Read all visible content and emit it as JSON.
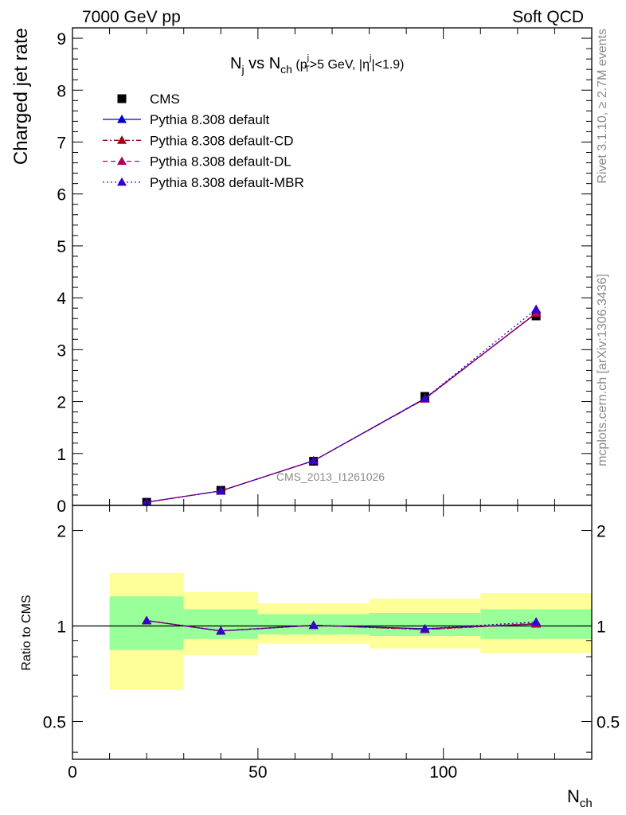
{
  "header": {
    "left": "7000 GeV pp",
    "right": "Soft QCD"
  },
  "side": {
    "rivet": "Rivet 3.1.10, ≥ 2.7M events",
    "mcplots": "mcplots.cern.ch [arXiv:1306.3436]"
  },
  "watermark": "CMS_2013_I1261026",
  "chart_data": [
    {
      "type": "line",
      "title": {
        "main": "N",
        "main_sub": "j",
        "vs": " vs N",
        "vs_sub": "ch",
        "cut1": " (p",
        "pt_sup": "j",
        "pt_sub": "T",
        "cut2": ">5 GeV, |η",
        "eta_sup": "j",
        "cut3": "|<1.9)"
      },
      "ylabel": "Charged jet rate",
      "xlim": [
        0,
        140
      ],
      "ylim": [
        0,
        9.2
      ],
      "yticks": [
        0,
        1,
        2,
        3,
        4,
        5,
        6,
        7,
        8,
        9
      ],
      "data_series": {
        "name": "CMS",
        "x": [
          20,
          40,
          65,
          95,
          125
        ],
        "y": [
          0.06,
          0.29,
          0.85,
          2.1,
          3.65
        ]
      },
      "series": [
        {
          "name": "Pythia 8.308 default",
          "color": "#0000cc",
          "dash": "solid",
          "x": [
            20,
            40,
            65,
            95,
            125
          ],
          "y": [
            0.062,
            0.28,
            0.86,
            2.06,
            3.7
          ]
        },
        {
          "name": "Pythia 8.308 default-CD",
          "color": "#99001a",
          "dash": "dashdot",
          "x": [
            20,
            40,
            65,
            95,
            125
          ],
          "y": [
            0.062,
            0.28,
            0.86,
            2.05,
            3.7
          ]
        },
        {
          "name": "Pythia 8.308 default-DL",
          "color": "#b3005f",
          "dash": "dashed",
          "x": [
            20,
            40,
            65,
            95,
            125
          ],
          "y": [
            0.062,
            0.28,
            0.86,
            2.05,
            3.71
          ]
        },
        {
          "name": "Pythia 8.308 default-MBR",
          "color": "#3300cc",
          "dash": "dotted",
          "x": [
            20,
            40,
            65,
            95,
            125
          ],
          "y": [
            0.062,
            0.28,
            0.86,
            2.06,
            3.78
          ]
        }
      ]
    },
    {
      "type": "line",
      "ylabel": "Ratio to CMS",
      "xlabel": {
        "main": "N",
        "sub": "ch"
      },
      "xlim": [
        0,
        140
      ],
      "ylim": [
        0.38,
        2.4
      ],
      "ylog": true,
      "yticks": [
        0.5,
        1,
        2
      ],
      "xticks": [
        0,
        50,
        100
      ],
      "bands": [
        {
          "x": [
            10,
            30
          ],
          "inner": [
            0.84,
            1.24
          ],
          "outer": [
            0.63,
            1.47
          ]
        },
        {
          "x": [
            30,
            50
          ],
          "inner": [
            0.91,
            1.13
          ],
          "outer": [
            0.81,
            1.28
          ]
        },
        {
          "x": [
            50,
            80
          ],
          "inner": [
            0.94,
            1.09
          ],
          "outer": [
            0.88,
            1.18
          ]
        },
        {
          "x": [
            80,
            110
          ],
          "inner": [
            0.93,
            1.1
          ],
          "outer": [
            0.85,
            1.22
          ]
        },
        {
          "x": [
            110,
            140
          ],
          "inner": [
            0.91,
            1.13
          ],
          "outer": [
            0.82,
            1.27
          ]
        }
      ],
      "series": [
        {
          "name": "Pythia 8.308 default",
          "color": "#0000cc",
          "dash": "solid",
          "x": [
            20,
            40,
            65,
            95,
            125
          ],
          "y": [
            1.04,
            0.965,
            1.005,
            0.98,
            1.015
          ]
        },
        {
          "name": "Pythia 8.308 default-CD",
          "color": "#99001a",
          "dash": "dashdot",
          "x": [
            20,
            40,
            65,
            95,
            125
          ],
          "y": [
            1.04,
            0.965,
            1.005,
            0.975,
            1.015
          ]
        },
        {
          "name": "Pythia 8.308 default-DL",
          "color": "#b3005f",
          "dash": "dashed",
          "x": [
            20,
            40,
            65,
            95,
            125
          ],
          "y": [
            1.04,
            0.965,
            1.005,
            0.975,
            1.02
          ]
        },
        {
          "name": "Pythia 8.308 default-MBR",
          "color": "#3300cc",
          "dash": "dotted",
          "x": [
            20,
            40,
            65,
            95,
            125
          ],
          "y": [
            1.04,
            0.965,
            1.005,
            0.98,
            1.03
          ]
        }
      ]
    }
  ],
  "colors": {
    "band_inner": "#99ff99",
    "band_outer": "#ffff99",
    "data": "#000000"
  }
}
